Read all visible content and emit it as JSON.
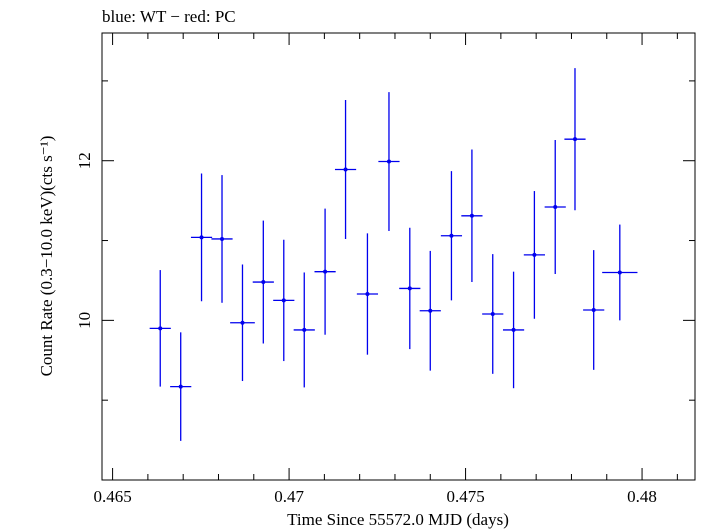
{
  "chart_data": {
    "type": "scatter",
    "title": "blue: WT − red: PC",
    "xlabel": "Time Since 55572.0 MJD (days)",
    "ylabel": "Count Rate (0.3−10.0 keV)(cts s⁻¹)",
    "xlim": [
      0.4647,
      0.4815
    ],
    "ylim": [
      8.0,
      13.6
    ],
    "x_ticks": [
      0.465,
      0.47,
      0.475,
      0.48
    ],
    "x_tick_labels": [
      "0.465",
      "0.47",
      "0.475",
      "0.48"
    ],
    "y_ticks": [
      10,
      12
    ],
    "y_tick_labels": [
      "10",
      "12"
    ],
    "grid": false,
    "color": "#0000ee",
    "series": [
      {
        "points": [
          {
            "x": 0.46635,
            "xerr": 0.0003,
            "y": 9.9,
            "yerr": 0.73
          },
          {
            "x": 0.46693,
            "xerr": 0.0003,
            "y": 9.17,
            "yerr": 0.68
          },
          {
            "x": 0.46752,
            "xerr": 0.0003,
            "y": 11.04,
            "yerr": 0.8
          },
          {
            "x": 0.4681,
            "xerr": 0.0003,
            "y": 11.02,
            "yerr": 0.8
          },
          {
            "x": 0.46868,
            "xerr": 0.00035,
            "y": 9.97,
            "yerr": 0.73
          },
          {
            "x": 0.46927,
            "xerr": 0.0003,
            "y": 10.48,
            "yerr": 0.77
          },
          {
            "x": 0.46985,
            "xerr": 0.0003,
            "y": 10.25,
            "yerr": 0.76
          },
          {
            "x": 0.47043,
            "xerr": 0.0003,
            "y": 9.88,
            "yerr": 0.72
          },
          {
            "x": 0.47102,
            "xerr": 0.0003,
            "y": 10.61,
            "yerr": 0.79
          },
          {
            "x": 0.4716,
            "xerr": 0.0003,
            "y": 11.89,
            "yerr": 0.87
          },
          {
            "x": 0.47222,
            "xerr": 0.0003,
            "y": 10.33,
            "yerr": 0.76
          },
          {
            "x": 0.47283,
            "xerr": 0.0003,
            "y": 11.99,
            "yerr": 0.87
          },
          {
            "x": 0.47342,
            "xerr": 0.0003,
            "y": 10.4,
            "yerr": 0.76
          },
          {
            "x": 0.474,
            "xerr": 0.0003,
            "y": 10.12,
            "yerr": 0.75
          },
          {
            "x": 0.4746,
            "xerr": 0.0003,
            "y": 11.06,
            "yerr": 0.81
          },
          {
            "x": 0.47518,
            "xerr": 0.0003,
            "y": 11.31,
            "yerr": 0.83
          },
          {
            "x": 0.47577,
            "xerr": 0.0003,
            "y": 10.08,
            "yerr": 0.75
          },
          {
            "x": 0.47636,
            "xerr": 0.0003,
            "y": 9.88,
            "yerr": 0.73
          },
          {
            "x": 0.47695,
            "xerr": 0.0003,
            "y": 10.82,
            "yerr": 0.8
          },
          {
            "x": 0.47754,
            "xerr": 0.0003,
            "y": 11.42,
            "yerr": 0.84
          },
          {
            "x": 0.4781,
            "xerr": 0.0003,
            "y": 12.27,
            "yerr": 0.89
          },
          {
            "x": 0.47863,
            "xerr": 0.0003,
            "y": 10.13,
            "yerr": 0.75
          },
          {
            "x": 0.47937,
            "xerr": 0.0005,
            "y": 10.6,
            "yerr": 0.6
          }
        ]
      }
    ]
  }
}
